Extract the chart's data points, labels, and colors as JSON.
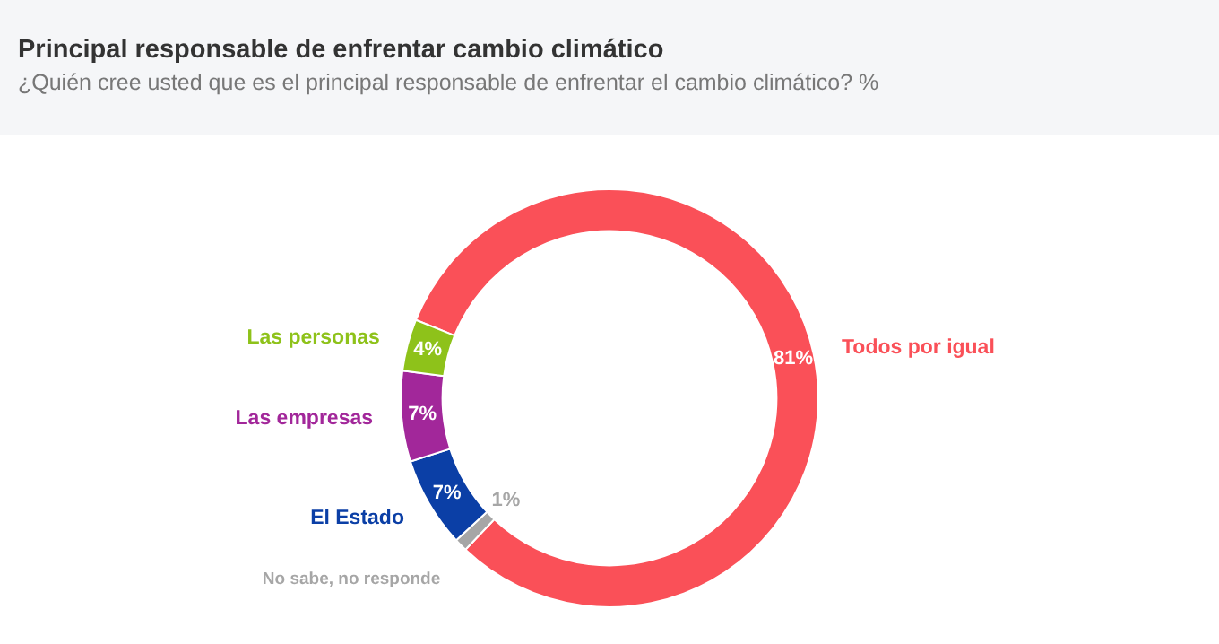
{
  "chart_data": {
    "type": "donut",
    "title": "Principal responsable de enfrentar cambio climático",
    "subtitle": "¿Quién cree usted que es el principal responsable de enfrentar el cambio climático? %",
    "categories": [
      "Todos por igual",
      "No sabe, no responde",
      "El Estado",
      "Las empresas",
      "Las personas"
    ],
    "values": [
      81,
      1,
      7,
      7,
      4
    ],
    "value_labels": [
      "81%",
      "1%",
      "7%",
      "7%",
      "4%"
    ],
    "colors": [
      "#fa5058",
      "#a6a6a6",
      "#0b3fa6",
      "#a2279a",
      "#8ec21a"
    ],
    "legend": false
  }
}
